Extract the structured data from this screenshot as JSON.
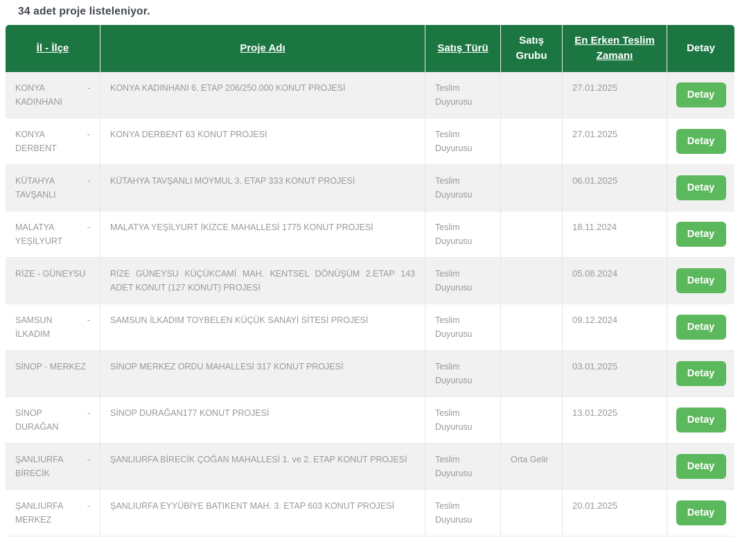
{
  "page": {
    "count_label": "34 adet proje listeleniyor."
  },
  "colors": {
    "header_green": "#1b7641",
    "button_green": "#5cb85c",
    "stripe_gray": "#f1f1f2",
    "body_text_gray": "#97999b"
  },
  "table": {
    "headers": [
      {
        "label": "İl - İlçe",
        "sortable": true
      },
      {
        "label": "Proje Adı",
        "sortable": true
      },
      {
        "label": "Satış Türü",
        "sortable": true
      },
      {
        "label": "Satış Grubu",
        "sortable": false
      },
      {
        "label": "En Erken Teslim Zamanı",
        "sortable": true
      },
      {
        "label": "Detay",
        "sortable": false
      }
    ],
    "detay_label": "Detay",
    "rows": [
      {
        "il_ilce": "KONYA - KADINHANI",
        "proje_adi": "KONYA KADINHANI 6. ETAP 206/250.000 KONUT PROJESİ",
        "satis_turu": "Teslim Duyurusu",
        "satis_grubu": "",
        "teslim_zamani": "27.01.2025"
      },
      {
        "il_ilce": "KONYA - DERBENT",
        "proje_adi": "KONYA DERBENT 63 KONUT PROJESİ",
        "satis_turu": "Teslim Duyurusu",
        "satis_grubu": "",
        "teslim_zamani": "27.01.2025"
      },
      {
        "il_ilce": "KÜTAHYA - TAVŞANLI",
        "proje_adi": "KÜTAHYA TAVŞANLI MOYMUL 3. ETAP 333 KONUT PROJESİ",
        "satis_turu": "Teslim Duyurusu",
        "satis_grubu": "",
        "teslim_zamani": "06.01.2025"
      },
      {
        "il_ilce": "MALATYA - YEŞİLYURT",
        "proje_adi": "MALATYA YEŞİLYURT İKİZCE MAHALLESİ 1775 KONUT PROJESİ",
        "satis_turu": "Teslim Duyurusu",
        "satis_grubu": "",
        "teslim_zamani": "18.11.2024"
      },
      {
        "il_ilce": "RİZE - GÜNEYSU",
        "proje_adi": "RİZE GÜNEYSU KÜÇÜKCAMİ MAH. KENTSEL DÖNÜŞÜM 2.ETAP 143 ADET KONUT (127 KONUT) PROJESİ",
        "satis_turu": "Teslim Duyurusu",
        "satis_grubu": "",
        "teslim_zamani": "05.08.2024"
      },
      {
        "il_ilce": "SAMSUN - İLKADIM",
        "proje_adi": "SAMSUN İLKADIM TOYBELEN KÜÇÜK SANAYİ SİTESİ PROJESİ",
        "satis_turu": "Teslim Duyurusu",
        "satis_grubu": "",
        "teslim_zamani": "09.12.2024"
      },
      {
        "il_ilce": "SİNOP - MERKEZ",
        "proje_adi": "SİNOP MERKEZ ORDU MAHALLESİ 317 KONUT PROJESİ",
        "satis_turu": "Teslim Duyurusu",
        "satis_grubu": "",
        "teslim_zamani": "03.01.2025"
      },
      {
        "il_ilce": "SİNOP - DURAĞAN",
        "proje_adi": "SİNOP DURAĞAN177 KONUT PROJESİ",
        "satis_turu": "Teslim Duyurusu",
        "satis_grubu": "",
        "teslim_zamani": "13.01.2025"
      },
      {
        "il_ilce": "ŞANLIURFA - BİRECİK",
        "proje_adi": "ŞANLIURFA BİRECİK ÇOĞAN MAHALLESİ 1. ve 2. ETAP KONUT PROJESİ",
        "satis_turu": "Teslim Duyurusu",
        "satis_grubu": "Orta Gelir",
        "teslim_zamani": ""
      },
      {
        "il_ilce": "ŞANLIURFA - MERKEZ",
        "proje_adi": "ŞANLIURFA EYYÜBİYE BATIKENT MAH. 3. ETAP 603 KONUT PROJESİ",
        "satis_turu": "Teslim Duyurusu",
        "satis_grubu": "",
        "teslim_zamani": "20.01.2025"
      }
    ]
  }
}
